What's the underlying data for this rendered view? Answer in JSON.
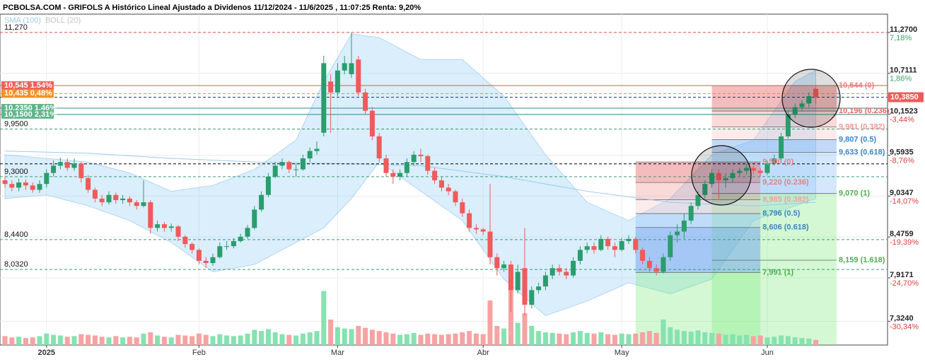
{
  "chart_data": {
    "type": "candlestick",
    "title": "PCBOLSA.COM - GRIFOLS A Histórico Lineal Ajustado a Dividenos 11/12/2024 - 11/6/2025 , 11:07:25 Renta: 9,20%",
    "legend": [
      {
        "name": "SMA (100)",
        "color": "#9ccbea"
      },
      {
        "name": "BOLL (20)",
        "color": "#c4c4c4"
      }
    ],
    "up_color": "#2a9d6c",
    "down_color": "#f05a5b",
    "volume_up_color": "#86e2b0",
    "volume_down_color": "#f6a3a3",
    "ylim": [
      7.0,
      11.52
    ],
    "vlim": [
      0,
      100
    ],
    "categories": [
      null,
      null,
      null,
      null,
      null,
      null,
      "2025",
      null,
      null,
      null,
      null,
      null,
      null,
      null,
      null,
      null,
      null,
      null,
      null,
      null,
      null,
      null,
      null,
      null,
      null,
      null,
      null,
      null,
      "Feb",
      null,
      null,
      null,
      null,
      null,
      null,
      null,
      null,
      null,
      null,
      null,
      null,
      null,
      null,
      null,
      null,
      null,
      null,
      null,
      "Mar",
      null,
      null,
      null,
      null,
      null,
      null,
      null,
      null,
      null,
      null,
      null,
      null,
      null,
      null,
      null,
      null,
      null,
      null,
      null,
      null,
      "Abr",
      null,
      null,
      null,
      null,
      null,
      null,
      null,
      null,
      null,
      null,
      null,
      null,
      null,
      null,
      null,
      null,
      null,
      null,
      null,
      "May",
      null,
      null,
      null,
      null,
      null,
      null,
      null,
      null,
      null,
      null,
      null,
      null,
      null,
      null,
      null,
      null,
      null,
      null,
      null,
      null,
      "Jun",
      null,
      null,
      null,
      null,
      null,
      null,
      null
    ],
    "ohlc": [
      [
        9.25,
        9.3,
        9.15,
        9.2
      ],
      [
        9.2,
        9.25,
        9.1,
        9.15
      ],
      [
        9.15,
        9.27,
        9.1,
        9.22
      ],
      [
        9.22,
        9.26,
        9.12,
        9.18
      ],
      [
        9.18,
        9.22,
        9.08,
        9.12
      ],
      [
        9.12,
        9.25,
        9.08,
        9.2
      ],
      [
        9.2,
        9.4,
        9.15,
        9.35
      ],
      [
        9.35,
        9.52,
        9.3,
        9.45
      ],
      [
        9.45,
        9.56,
        9.4,
        9.5
      ],
      [
        9.5,
        9.55,
        9.38,
        9.42
      ],
      [
        9.42,
        9.55,
        9.38,
        9.48
      ],
      [
        9.48,
        9.5,
        9.22,
        9.28
      ],
      [
        9.28,
        9.32,
        9.08,
        9.12
      ],
      [
        9.12,
        9.15,
        8.95,
        9.0
      ],
      [
        9.0,
        9.05,
        8.9,
        8.95
      ],
      [
        8.95,
        9.1,
        8.92,
        9.05
      ],
      [
        9.05,
        9.08,
        8.93,
        8.98
      ],
      [
        8.98,
        9.05,
        8.93,
        9.0
      ],
      [
        9.0,
        9.03,
        8.9,
        8.95
      ],
      [
        8.95,
        8.98,
        8.85,
        8.9
      ],
      [
        8.9,
        9.25,
        8.88,
        8.95
      ],
      [
        8.95,
        8.98,
        8.52,
        8.6
      ],
      [
        8.6,
        8.7,
        8.55,
        8.65
      ],
      [
        8.65,
        8.68,
        8.55,
        8.6
      ],
      [
        8.6,
        8.66,
        8.55,
        8.62
      ],
      [
        8.62,
        8.64,
        8.42,
        8.48
      ],
      [
        8.48,
        8.5,
        8.33,
        8.38
      ],
      [
        8.38,
        8.4,
        8.25,
        8.3
      ],
      [
        8.3,
        8.32,
        8.1,
        8.15
      ],
      [
        8.15,
        8.2,
        8.05,
        8.12
      ],
      [
        8.12,
        8.25,
        8.08,
        8.2
      ],
      [
        8.2,
        8.4,
        8.18,
        8.35
      ],
      [
        8.35,
        8.42,
        8.3,
        8.35
      ],
      [
        8.35,
        8.46,
        8.32,
        8.42
      ],
      [
        8.42,
        8.52,
        8.4,
        8.48
      ],
      [
        8.48,
        8.64,
        8.45,
        8.6
      ],
      [
        8.6,
        8.9,
        8.58,
        8.85
      ],
      [
        8.85,
        9.1,
        8.82,
        9.05
      ],
      [
        9.05,
        9.35,
        9.02,
        9.3
      ],
      [
        9.3,
        9.5,
        9.28,
        9.45
      ],
      [
        9.45,
        9.55,
        9.4,
        9.5
      ],
      [
        9.5,
        9.52,
        9.35,
        9.4
      ],
      [
        9.4,
        9.48,
        9.3,
        9.4
      ],
      [
        9.4,
        9.6,
        9.38,
        9.55
      ],
      [
        9.55,
        9.7,
        9.5,
        9.65
      ],
      [
        9.65,
        9.78,
        9.6,
        9.68
      ],
      [
        9.9,
        10.95,
        9.85,
        10.85
      ],
      [
        10.6,
        10.7,
        9.9,
        10.45
      ],
      [
        10.45,
        10.85,
        10.4,
        10.75
      ],
      [
        10.75,
        10.95,
        10.7,
        10.85
      ],
      [
        10.7,
        11.27,
        10.65,
        10.85
      ],
      [
        10.9,
        10.95,
        10.4,
        10.45
      ],
      [
        10.45,
        10.5,
        10.15,
        10.2
      ],
      [
        10.2,
        10.25,
        9.8,
        9.85
      ],
      [
        9.85,
        9.9,
        9.5,
        9.55
      ],
      [
        9.55,
        9.6,
        9.3,
        9.35
      ],
      [
        9.35,
        9.4,
        9.2,
        9.3
      ],
      [
        9.3,
        9.4,
        9.25,
        9.35
      ],
      [
        9.35,
        9.55,
        9.3,
        9.5
      ],
      [
        9.5,
        9.65,
        9.45,
        9.6
      ],
      [
        9.6,
        9.68,
        9.5,
        9.58
      ],
      [
        9.58,
        9.6,
        9.33,
        9.38
      ],
      [
        9.38,
        9.42,
        9.2,
        9.25
      ],
      [
        9.25,
        9.3,
        9.1,
        9.15
      ],
      [
        9.15,
        9.2,
        9.05,
        9.1
      ],
      [
        9.1,
        9.12,
        8.9,
        8.95
      ],
      [
        8.95,
        9.0,
        8.75,
        8.8
      ],
      [
        8.8,
        8.85,
        8.55,
        8.6
      ],
      [
        8.6,
        8.65,
        8.52,
        8.58
      ],
      [
        8.58,
        8.6,
        8.5,
        8.55
      ],
      [
        8.55,
        9.2,
        8.1,
        8.2
      ],
      [
        8.2,
        8.25,
        7.95,
        8.05
      ],
      [
        8.05,
        8.15,
        8.0,
        8.1
      ],
      [
        8.1,
        8.15,
        7.45,
        7.75
      ],
      [
        7.75,
        8.1,
        7.7,
        8.0
      ],
      [
        8.05,
        8.6,
        7.4,
        7.55
      ],
      [
        7.55,
        7.8,
        7.5,
        7.75
      ],
      [
        7.75,
        7.85,
        7.7,
        7.8
      ],
      [
        7.8,
        8.0,
        7.75,
        7.95
      ],
      [
        7.95,
        8.1,
        7.9,
        8.05
      ],
      [
        8.05,
        8.1,
        7.95,
        8.0
      ],
      [
        8.0,
        8.05,
        7.9,
        7.95
      ],
      [
        7.95,
        8.2,
        7.92,
        8.15
      ],
      [
        8.15,
        8.35,
        8.1,
        8.3
      ],
      [
        8.3,
        8.4,
        8.25,
        8.35
      ],
      [
        8.35,
        8.4,
        8.25,
        8.3
      ],
      [
        8.3,
        8.5,
        8.28,
        8.45
      ],
      [
        8.45,
        8.48,
        8.3,
        8.35
      ],
      [
        8.35,
        8.4,
        8.2,
        8.3
      ],
      [
        8.3,
        8.46,
        8.28,
        8.42
      ],
      [
        8.42,
        8.5,
        8.38,
        8.45
      ],
      [
        8.45,
        8.48,
        8.25,
        8.3
      ],
      [
        8.3,
        8.33,
        8.1,
        8.15
      ],
      [
        8.15,
        8.2,
        8.0,
        8.05
      ],
      [
        8.05,
        8.1,
        7.95,
        8.0
      ],
      [
        8.0,
        8.25,
        7.98,
        8.2
      ],
      [
        8.2,
        8.55,
        8.15,
        8.5
      ],
      [
        8.5,
        8.65,
        8.4,
        8.55
      ],
      [
        8.55,
        8.8,
        8.45,
        8.7
      ],
      [
        8.7,
        8.95,
        8.65,
        8.9
      ],
      [
        8.9,
        9.1,
        8.85,
        9.05
      ],
      [
        9.05,
        9.25,
        9.0,
        9.2
      ],
      [
        9.2,
        9.4,
        9.15,
        9.35
      ],
      [
        9.35,
        9.4,
        9.0,
        9.25
      ],
      [
        9.25,
        9.35,
        9.15,
        9.28
      ],
      [
        9.28,
        9.4,
        9.22,
        9.35
      ],
      [
        9.35,
        9.42,
        9.3,
        9.38
      ],
      [
        9.38,
        9.48,
        9.33,
        9.42
      ],
      [
        9.42,
        9.45,
        9.33,
        9.38
      ],
      [
        9.38,
        9.42,
        9.3,
        9.35
      ],
      [
        9.35,
        9.52,
        9.32,
        9.48
      ],
      [
        9.48,
        9.6,
        9.45,
        9.55
      ],
      [
        9.55,
        9.9,
        9.52,
        9.85
      ],
      [
        9.85,
        10.2,
        9.82,
        10.15
      ],
      [
        10.15,
        10.3,
        10.1,
        10.25
      ],
      [
        10.25,
        10.35,
        10.2,
        10.3
      ],
      [
        10.3,
        10.45,
        10.25,
        10.4
      ],
      [
        10.5,
        10.52,
        10.3,
        10.385
      ]
    ],
    "volume": [
      14,
      12,
      13,
      11,
      12,
      14,
      18,
      16,
      15,
      13,
      14,
      17,
      16,
      15,
      13,
      12,
      14,
      12,
      13,
      12,
      18,
      20,
      15,
      13,
      12,
      16,
      15,
      14,
      18,
      16,
      14,
      17,
      15,
      14,
      15,
      18,
      24,
      22,
      25,
      20,
      17,
      16,
      15,
      18,
      20,
      22,
      85,
      40,
      28,
      26,
      25,
      30,
      27,
      24,
      22,
      20,
      18,
      16,
      17,
      19,
      16,
      18,
      17,
      16,
      17,
      18,
      20,
      22,
      18,
      17,
      70,
      30,
      26,
      92,
      35,
      50,
      30,
      22,
      20,
      19,
      18,
      17,
      20,
      22,
      19,
      18,
      20,
      17,
      16,
      18,
      17,
      18,
      20,
      22,
      19,
      40,
      28,
      24,
      22,
      21,
      23,
      20,
      19,
      18,
      16,
      17,
      15,
      16,
      14,
      15,
      12,
      13,
      15,
      14,
      12,
      11,
      10,
      8
    ],
    "boll": {
      "x": [
        0,
        6,
        12,
        18,
        24,
        30,
        36,
        42,
        46,
        50,
        54,
        60,
        66,
        72,
        78,
        84,
        90,
        96,
        102,
        108,
        114,
        117
      ],
      "upper": [
        9.6,
        9.55,
        9.5,
        9.35,
        9.1,
        9.18,
        9.4,
        9.8,
        10.6,
        11.25,
        11.2,
        10.9,
        10.9,
        10.4,
        9.6,
        8.95,
        8.7,
        9.0,
        9.6,
        9.8,
        10.6,
        10.75
      ],
      "lower": [
        9.0,
        9.05,
        8.9,
        8.7,
        8.4,
        8.0,
        8.1,
        8.4,
        8.6,
        9.0,
        9.5,
        9.1,
        8.7,
        7.9,
        7.4,
        7.6,
        7.85,
        7.7,
        7.9,
        8.7,
        8.9,
        9.0
      ]
    },
    "sma": {
      "x": [
        0,
        12,
        24,
        36,
        48,
        60,
        72,
        84,
        96,
        108,
        117
      ],
      "values": [
        9.65,
        9.62,
        9.55,
        9.5,
        9.48,
        9.45,
        9.3,
        9.1,
        8.95,
        8.9,
        8.95
      ]
    },
    "levels": [
      {
        "value": 11.27,
        "label": "11,270",
        "color": "#e05555",
        "dash": true
      },
      {
        "value": 10.545,
        "label": "10,545  1.54%",
        "color": "#e05555",
        "box": "#f0605a"
      },
      {
        "value": 10.435,
        "label": "10,435  0,48%",
        "color": "#f08a24",
        "dash": true,
        "box": "#f29227"
      },
      {
        "value": 10.385,
        "color": "#1f3b70",
        "dash": true
      },
      {
        "value": 10.235,
        "label": "10,2350  1,46%",
        "color": "#2f8f86",
        "box": "#5fb58c"
      },
      {
        "value": 10.15,
        "label": "10,1500  2,31%",
        "color": "#2f8f86",
        "box": "#5fb58c"
      },
      {
        "value": 9.95,
        "label": "9,9500",
        "color": "#3b9b70",
        "dash": true
      },
      {
        "value": 9.475,
        "color": "#000000",
        "dash": true
      },
      {
        "value": 9.3,
        "label": "9,3000",
        "color": "#3b9b70",
        "dash": true
      },
      {
        "value": 8.44,
        "label": "8,4400",
        "color": "#3b9b70",
        "dash": true
      },
      {
        "value": 8.032,
        "label": "8,0320",
        "color": "#3b9b70",
        "dash": true
      }
    ],
    "fib": [
      {
        "x": [
          102,
          120
        ],
        "levels": [
          {
            "value": 10.544,
            "label": "10,544 (0)",
            "color": "#e88080",
            "fill": "rgba(225,80,80,0.38)"
          },
          {
            "value": 10.196,
            "label": "10,196 (0.236)",
            "color": "#e06666",
            "fill": "rgba(240,130,130,0.3)"
          },
          {
            "value": 9.981,
            "label": "9,981 (0.382)",
            "color": "#f09a9a",
            "fill": "rgba(250,190,190,0.3)"
          },
          {
            "value": 9.807,
            "label": "9,807 (0.5)",
            "color": "#3d85c6",
            "fill": "rgba(120,170,240,0.45)"
          },
          {
            "value": 9.633,
            "label": "9,633 (0.618)",
            "color": "#3d85c6",
            "fill": "rgba(150,195,250,0.4)"
          },
          {
            "value": 9.07,
            "label": "9,070 (1)",
            "color": "#4caf50",
            "fill": "rgba(130,235,130,0.35)"
          },
          {
            "value": 8.159,
            "label": "8,159 (1.618)",
            "color": "#4caf50",
            "fill": "rgba(130,235,130,0.35)"
          }
        ]
      },
      {
        "x": [
          91,
          109
        ],
        "levels": [
          {
            "value": 9.5,
            "label": "9,500 (0)",
            "color": "#e88080",
            "fill": "rgba(225,80,80,0.38)"
          },
          {
            "value": 9.22,
            "label": "9,220 (0.236)",
            "color": "#e88080",
            "fill": "rgba(240,130,130,0.3)"
          },
          {
            "value": 8.985,
            "label": "8,985 (0.382)",
            "color": "#f0a0a0",
            "fill": "rgba(250,190,190,0.3)"
          },
          {
            "value": 8.796,
            "label": "8,796 (0.5)",
            "color": "#3d85c6",
            "fill": "rgba(150,195,250,0.4)"
          },
          {
            "value": 8.606,
            "label": "8,606 (0.618)",
            "color": "#3d85c6",
            "fill": "rgba(110,160,240,0.5)"
          },
          {
            "value": 7.991,
            "label": "7,991 (1)",
            "color": "#4caf50",
            "fill": "rgba(130,235,130,0.35)"
          }
        ]
      }
    ],
    "y2ticks": [
      {
        "value": 11.27,
        "label": "11,2700"
      },
      {
        "value": 10.7111,
        "label": "10,7111"
      },
      {
        "value": 10.1523,
        "label": "10,1523"
      },
      {
        "value": 9.5935,
        "label": "9,5935"
      },
      {
        "value": 9.0347,
        "label": "9,0347"
      },
      {
        "value": 8.4759,
        "label": "8,4759"
      },
      {
        "value": 7.9171,
        "label": "7,9171"
      },
      {
        "value": 7.324,
        "label": "7,3240"
      }
    ],
    "y2pct": [
      "7,18%",
      "1,86%",
      "-3,44%",
      "-8,76%",
      "-14,07%",
      "-19,39%",
      "-24,70%",
      "-30,34%"
    ],
    "last": {
      "value": 10.385,
      "label": "10,3850",
      "color": "#f05a5b"
    }
  }
}
